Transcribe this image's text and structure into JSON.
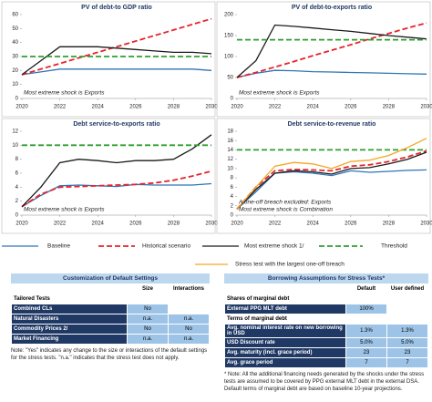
{
  "chart_data": [
    {
      "type": "line",
      "title": "PV of debt-to GDP ratio",
      "x": [
        2020,
        2021,
        2022,
        2023,
        2024,
        2025,
        2026,
        2027,
        2028,
        2029,
        2030
      ],
      "xlim": [
        2020,
        2030
      ],
      "xticks": [
        2020,
        2022,
        2024,
        2026,
        2028,
        2030
      ],
      "ylim": [
        0,
        60
      ],
      "yticks": [
        0,
        10,
        20,
        30,
        40,
        50,
        60
      ],
      "annotations": [
        "Most extreme shock is Exports"
      ],
      "series": [
        {
          "name": "Baseline",
          "color": "#2e75b6",
          "dashed": false,
          "values": [
            17,
            19,
            21,
            21,
            21,
            21,
            21,
            21,
            21,
            21,
            20
          ]
        },
        {
          "name": "Historical scenario",
          "color": "#e8232a",
          "dashed": true,
          "values": [
            17,
            21,
            25,
            29,
            33,
            37,
            41,
            45,
            49,
            53,
            57
          ]
        },
        {
          "name": "Most extreme shock 1/",
          "color": "#1a1a1a",
          "dashed": false,
          "values": [
            17,
            27,
            37,
            37,
            37,
            36,
            35,
            34,
            33,
            33,
            32
          ]
        },
        {
          "name": "Threshold",
          "color": "#2ca02c",
          "dashed": true,
          "values": [
            30,
            30,
            30,
            30,
            30,
            30,
            30,
            30,
            30,
            30,
            30
          ]
        }
      ]
    },
    {
      "type": "line",
      "title": "PV of debt-to-exports ratio",
      "x": [
        2020,
        2021,
        2022,
        2023,
        2024,
        2025,
        2026,
        2027,
        2028,
        2029,
        2030
      ],
      "xlim": [
        2020,
        2030
      ],
      "xticks": [
        2020,
        2022,
        2024,
        2026,
        2028,
        2030
      ],
      "ylim": [
        0,
        200
      ],
      "yticks": [
        0,
        50,
        100,
        150,
        200
      ],
      "annotations": [
        "Most extreme shock is Exports"
      ],
      "series": [
        {
          "name": "Baseline",
          "color": "#2e75b6",
          "dashed": false,
          "values": [
            50,
            60,
            67,
            66,
            64,
            63,
            62,
            61,
            60,
            59,
            58
          ]
        },
        {
          "name": "Historical scenario",
          "color": "#e8232a",
          "dashed": true,
          "values": [
            50,
            62,
            75,
            88,
            102,
            115,
            128,
            142,
            155,
            168,
            180
          ]
        },
        {
          "name": "Most extreme shock 1/",
          "color": "#1a1a1a",
          "dashed": false,
          "values": [
            50,
            90,
            175,
            172,
            168,
            164,
            160,
            155,
            150,
            146,
            142
          ]
        },
        {
          "name": "Threshold",
          "color": "#2ca02c",
          "dashed": true,
          "values": [
            140,
            140,
            140,
            140,
            140,
            140,
            140,
            140,
            140,
            140,
            140
          ]
        }
      ]
    },
    {
      "type": "line",
      "title": "Debt service-to-exports ratio",
      "x": [
        2020,
        2021,
        2022,
        2023,
        2024,
        2025,
        2026,
        2027,
        2028,
        2029,
        2030
      ],
      "xlim": [
        2020,
        2030
      ],
      "xticks": [
        2020,
        2022,
        2024,
        2026,
        2028,
        2030
      ],
      "ylim": [
        0,
        12
      ],
      "yticks": [
        0,
        2,
        4,
        6,
        8,
        10,
        12
      ],
      "annotations": [
        "Most extreme shock is Exports"
      ],
      "series": [
        {
          "name": "Baseline",
          "color": "#2e75b6",
          "dashed": false,
          "values": [
            1.2,
            2.8,
            4.2,
            4.3,
            4.2,
            4.1,
            4.4,
            4.3,
            4.3,
            4.3,
            4.5
          ]
        },
        {
          "name": "Historical scenario",
          "color": "#e8232a",
          "dashed": true,
          "values": [
            1.2,
            3,
            4,
            4.1,
            4.2,
            4.3,
            4.4,
            4.6,
            5,
            5.6,
            6.3
          ]
        },
        {
          "name": "Most extreme shock 1/",
          "color": "#1a1a1a",
          "dashed": false,
          "values": [
            1.2,
            4,
            7.5,
            8,
            7.8,
            7.5,
            7.8,
            7.8,
            8,
            9.5,
            11.5
          ]
        },
        {
          "name": "Threshold",
          "color": "#2ca02c",
          "dashed": true,
          "values": [
            10,
            10,
            10,
            10,
            10,
            10,
            10,
            10,
            10,
            10,
            10
          ]
        }
      ]
    },
    {
      "type": "line",
      "title": "Debt service-to-revenue ratio",
      "x": [
        2020,
        2021,
        2022,
        2023,
        2024,
        2025,
        2026,
        2027,
        2028,
        2029,
        2030
      ],
      "xlim": [
        2020,
        2030
      ],
      "xticks": [
        2020,
        2022,
        2024,
        2026,
        2028,
        2030
      ],
      "ylim": [
        0,
        18
      ],
      "yticks": [
        0,
        2,
        4,
        6,
        8,
        10,
        12,
        14,
        16,
        18
      ],
      "annotations": [
        "A one-off breach excluded: Exports",
        "Most extreme shock is Combination"
      ],
      "series": [
        {
          "name": "Baseline",
          "color": "#2e75b6",
          "dashed": false,
          "values": [
            1.3,
            5,
            9,
            9.3,
            9,
            8.5,
            9.5,
            9.2,
            9.4,
            9.6,
            9.7
          ]
        },
        {
          "name": "Historical scenario",
          "color": "#e8232a",
          "dashed": true,
          "values": [
            1.3,
            6,
            9.5,
            9.8,
            9.7,
            9.5,
            10.5,
            10.8,
            11.5,
            12.5,
            13.8
          ]
        },
        {
          "name": "Most extreme shock 1/",
          "color": "#1a1a1a",
          "dashed": false,
          "values": [
            1.3,
            5.5,
            9,
            9.5,
            9.3,
            8.8,
            10,
            10.2,
            11,
            12,
            13.5
          ]
        },
        {
          "name": "Threshold",
          "color": "#2ca02c",
          "dashed": true,
          "values": [
            14,
            14,
            14,
            14,
            14,
            14,
            14,
            14,
            14,
            14,
            14
          ]
        },
        {
          "name": "Stress test with the largest one-off breach",
          "color": "#f5a623",
          "dashed": false,
          "values": [
            1.3,
            6,
            10.5,
            11.3,
            11,
            10,
            11.5,
            11.8,
            12.8,
            14.5,
            16.5
          ]
        }
      ]
    }
  ],
  "tables": [
    {
      "title": "Customization of Default Settings",
      "columns": [
        "Size",
        "Interactions"
      ],
      "sections": [
        {
          "heading": "Tailored Tests",
          "rows": [
            [
              "Combined CLs",
              "No"
            ],
            [
              "Natural Disasters",
              "n.a.",
              "n.a."
            ],
            [
              "Commodity Prices 2/",
              "No",
              "No"
            ],
            [
              "Market Financing",
              "n.a.",
              "n.a."
            ]
          ]
        }
      ],
      "note": "Note: \"Yes\" indicates any change to the size or interactions of the default settings for the stress tests. \"n.a.\" indicates that the stress test does not apply."
    },
    {
      "title": "Borrowing Assumptions for Stress Tests*",
      "columns": [
        "Default",
        "User defined"
      ],
      "sections": [
        {
          "heading": "Shares of marginal debt",
          "rows": [
            [
              "External PPG MLT debt",
              "100%"
            ]
          ]
        },
        {
          "heading": "Terms of marginal debt",
          "rows": [
            [
              "Avg. nominal interest rate on new borrowing in USD",
              "1.3%",
              "1.3%"
            ],
            [
              "USD Discount rate",
              "5.0%",
              "5.0%"
            ],
            [
              "Avg. maturity (incl. grace period)",
              "23",
              "23"
            ],
            [
              "Avg. grace period",
              "7",
              "7"
            ]
          ]
        }
      ],
      "note": "* Note: All the additional financing needs generated by the shocks under the stress tests are assumed to be covered by PPG external MLT debt in the external DSA. Default terms of marginal debt are based on baseline 10-year projections."
    }
  ]
}
